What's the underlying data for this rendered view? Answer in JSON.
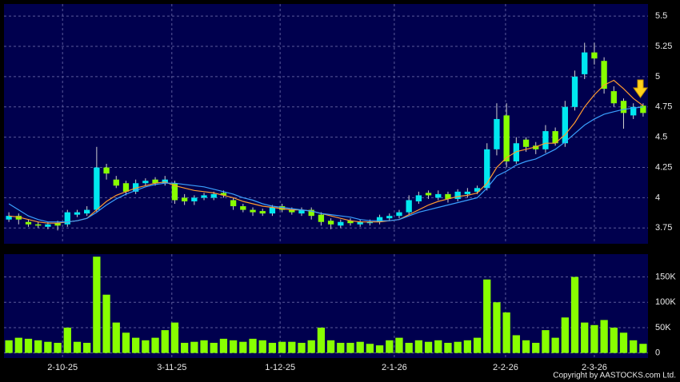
{
  "chart_data": [
    {
      "type": "candlestick",
      "open": [
        3.82,
        3.85,
        3.8,
        3.78,
        3.76,
        3.79,
        3.78,
        3.86,
        3.87,
        3.9,
        4.25,
        4.15,
        4.12,
        4.05,
        4.12,
        4.15,
        4.12,
        4.12,
        4.0,
        3.97,
        4.0,
        4.0,
        4.04,
        3.98,
        3.93,
        3.9,
        3.89,
        3.87,
        3.93,
        3.9,
        3.87,
        3.9,
        3.86,
        3.81,
        3.77,
        3.81,
        3.78,
        3.79,
        3.8,
        3.83,
        3.85,
        3.88,
        3.97,
        4.04,
        4.0,
        4.03,
        3.99,
        4.03,
        4.05,
        4.08,
        4.4,
        4.68,
        4.3,
        4.48,
        4.43,
        4.4,
        4.55,
        4.45,
        4.75,
        5.02,
        5.2,
        5.13,
        4.88,
        4.8,
        4.68,
        4.76
      ],
      "high": [
        3.88,
        3.87,
        3.82,
        3.8,
        3.8,
        3.81,
        3.9,
        3.9,
        3.93,
        4.42,
        4.28,
        4.18,
        4.14,
        4.15,
        4.16,
        4.17,
        4.18,
        4.14,
        4.03,
        4.02,
        4.04,
        4.05,
        4.06,
        4.0,
        3.95,
        3.92,
        3.91,
        3.94,
        3.95,
        3.92,
        3.92,
        3.92,
        3.88,
        3.83,
        3.82,
        3.83,
        3.82,
        3.82,
        3.86,
        3.87,
        3.9,
        4.02,
        4.05,
        4.06,
        4.06,
        4.05,
        4.07,
        4.08,
        4.1,
        4.45,
        4.78,
        4.78,
        4.5,
        4.5,
        4.46,
        4.6,
        4.58,
        4.8,
        5.05,
        5.28,
        5.28,
        5.16,
        4.92,
        4.82,
        4.78,
        4.78
      ],
      "low": [
        3.8,
        3.78,
        3.76,
        3.75,
        3.74,
        3.73,
        3.76,
        3.84,
        3.85,
        3.88,
        4.15,
        4.08,
        4.02,
        4.03,
        4.1,
        4.1,
        4.1,
        3.95,
        3.94,
        3.94,
        3.98,
        3.98,
        4.0,
        3.9,
        3.88,
        3.85,
        3.85,
        3.85,
        3.88,
        3.86,
        3.85,
        3.82,
        3.77,
        3.74,
        3.75,
        3.77,
        3.76,
        3.77,
        3.78,
        3.81,
        3.83,
        3.86,
        3.95,
        3.99,
        3.98,
        3.96,
        3.97,
        4.0,
        4.03,
        4.06,
        4.35,
        4.25,
        4.28,
        4.38,
        4.36,
        4.37,
        4.43,
        4.42,
        4.72,
        4.98,
        5.1,
        4.86,
        4.75,
        4.57,
        4.65,
        4.67
      ],
      "close": [
        3.85,
        3.82,
        3.78,
        3.77,
        3.78,
        3.77,
        3.88,
        3.88,
        3.9,
        4.25,
        4.2,
        4.1,
        4.05,
        4.12,
        4.14,
        4.12,
        4.15,
        3.98,
        3.97,
        4.0,
        4.02,
        4.03,
        4.02,
        3.93,
        3.9,
        3.88,
        3.87,
        3.92,
        3.9,
        3.88,
        3.9,
        3.85,
        3.8,
        3.78,
        3.8,
        3.79,
        3.8,
        3.8,
        3.84,
        3.85,
        3.88,
        3.98,
        4.02,
        4.02,
        4.03,
        3.99,
        4.05,
        4.05,
        4.08,
        4.4,
        4.65,
        4.3,
        4.45,
        4.42,
        4.4,
        4.55,
        4.45,
        4.75,
        5.0,
        5.2,
        5.15,
        4.9,
        4.78,
        4.7,
        4.75,
        4.7
      ],
      "up_color": "#00e8f0",
      "down_color": "#88ff00",
      "lines": [
        {
          "color": "#ff9a30",
          "values": [
            3.85,
            3.84,
            3.82,
            3.8,
            3.79,
            3.79,
            3.8,
            3.81,
            3.83,
            3.9,
            3.97,
            4.02,
            4.05,
            4.08,
            4.1,
            4.12,
            4.13,
            4.1,
            4.08,
            4.06,
            4.05,
            4.04,
            4.02,
            4.0,
            3.97,
            3.95,
            3.93,
            3.92,
            3.91,
            3.9,
            3.9,
            3.89,
            3.87,
            3.85,
            3.83,
            3.81,
            3.8,
            3.8,
            3.8,
            3.81,
            3.82,
            3.86,
            3.9,
            3.94,
            3.97,
            3.99,
            4.01,
            4.02,
            4.04,
            4.12,
            4.25,
            4.33,
            4.38,
            4.4,
            4.42,
            4.45,
            4.45,
            4.52,
            4.62,
            4.75,
            4.85,
            4.93,
            4.97,
            4.9,
            4.82,
            4.76
          ]
        },
        {
          "color": "#3aa0ff",
          "values": [
            3.95,
            3.9,
            3.85,
            3.82,
            3.8,
            3.8,
            3.8,
            3.81,
            3.83,
            3.88,
            3.94,
            3.99,
            4.03,
            4.06,
            4.09,
            4.11,
            4.12,
            4.12,
            4.11,
            4.1,
            4.09,
            4.07,
            4.05,
            4.03,
            4.0,
            3.98,
            3.95,
            3.93,
            3.92,
            3.91,
            3.9,
            3.89,
            3.87,
            3.86,
            3.85,
            3.84,
            3.82,
            3.81,
            3.81,
            3.81,
            3.82,
            3.85,
            3.88,
            3.9,
            3.92,
            3.94,
            3.96,
            3.98,
            4.0,
            4.08,
            4.18,
            4.22,
            4.27,
            4.3,
            4.32,
            4.36,
            4.4,
            4.46,
            4.53,
            4.6,
            4.65,
            4.69,
            4.71,
            4.73,
            4.74,
            4.75
          ]
        }
      ],
      "ylim": [
        3.62,
        5.6
      ],
      "yticks": [
        3.75,
        4,
        4.25,
        4.5,
        4.75,
        5,
        5.25,
        5.5
      ],
      "grid": true
    },
    {
      "type": "bar",
      "values": [
        25000,
        30000,
        28000,
        25000,
        22000,
        20000,
        50000,
        22000,
        20000,
        190000,
        115000,
        60000,
        40000,
        30000,
        25000,
        30000,
        45000,
        60000,
        20000,
        22000,
        25000,
        20000,
        28000,
        25000,
        22000,
        28000,
        25000,
        20000,
        22000,
        22000,
        20000,
        25000,
        50000,
        25000,
        20000,
        20000,
        22000,
        18000,
        15000,
        25000,
        30000,
        20000,
        25000,
        22000,
        25000,
        20000,
        22000,
        25000,
        30000,
        145000,
        100000,
        80000,
        35000,
        25000,
        20000,
        45000,
        30000,
        70000,
        150000,
        60000,
        55000,
        65000,
        50000,
        40000,
        25000,
        18000
      ],
      "color": "#88ff00",
      "xlim": [
        -0.5,
        65.5
      ],
      "xticks": [
        {
          "value": 5.5,
          "label": "2-10-25"
        },
        {
          "value": 16.7,
          "label": "3-11-25"
        },
        {
          "value": 27.8,
          "label": "1-12-25"
        },
        {
          "value": 39.5,
          "label": "2-1-26"
        },
        {
          "value": 50.9,
          "label": "2-2-26"
        },
        {
          "value": 60,
          "label": "2-3-26"
        }
      ],
      "ylim": [
        -10000,
        195000
      ],
      "yticks": [
        0,
        {
          "value": 50000,
          "label": "50K"
        },
        {
          "value": 100000,
          "label": "100K"
        },
        {
          "value": 150000,
          "label": "150K"
        }
      ],
      "grid": true
    }
  ],
  "copyright": "Copyright by AASTOCKS.com Ltd."
}
